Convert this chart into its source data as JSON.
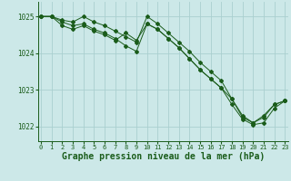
{
  "bg_color": "#cce8e8",
  "grid_color": "#aacfcf",
  "line_color": "#1a5c1a",
  "marker_color": "#1a5c1a",
  "xlabel": "Graphe pression niveau de la mer (hPa)",
  "xlabel_fontsize": 7,
  "xticks": [
    0,
    1,
    2,
    3,
    4,
    5,
    6,
    7,
    8,
    9,
    10,
    11,
    12,
    13,
    14,
    15,
    16,
    17,
    18,
    19,
    20,
    21,
    22,
    23
  ],
  "yticks": [
    1022,
    1023,
    1024,
    1025
  ],
  "ylim": [
    1021.6,
    1025.4
  ],
  "xlim": [
    -0.3,
    23.3
  ],
  "line1": [
    1025.0,
    1025.0,
    1024.9,
    1024.85,
    1025.0,
    1024.85,
    1024.75,
    1024.6,
    1024.45,
    1024.3,
    1025.0,
    1024.8,
    1024.55,
    1024.3,
    1024.05,
    1023.75,
    1023.5,
    1023.25,
    1022.75,
    1022.25,
    1022.1,
    1022.25,
    1022.6,
    1022.7
  ],
  "line2": [
    1025.0,
    1025.0,
    1024.85,
    1024.75,
    1024.8,
    1024.65,
    1024.55,
    1024.4,
    1024.2,
    1024.05,
    1024.8,
    1024.65,
    1024.4,
    1024.15,
    1023.85,
    1023.55,
    1023.3,
    1023.05,
    1022.6,
    1022.2,
    1022.05,
    1022.1,
    1022.5,
    1022.7
  ],
  "line3": [
    1025.0,
    1025.0,
    1024.75,
    1024.65,
    1024.75,
    1024.6,
    1024.5,
    1024.35,
    1024.55,
    1024.35,
    1024.8,
    1024.65,
    1024.4,
    1024.15,
    1023.85,
    1023.55,
    1023.3,
    1023.05,
    1022.75,
    1022.3,
    1022.1,
    1022.3,
    1022.6,
    1022.7
  ]
}
